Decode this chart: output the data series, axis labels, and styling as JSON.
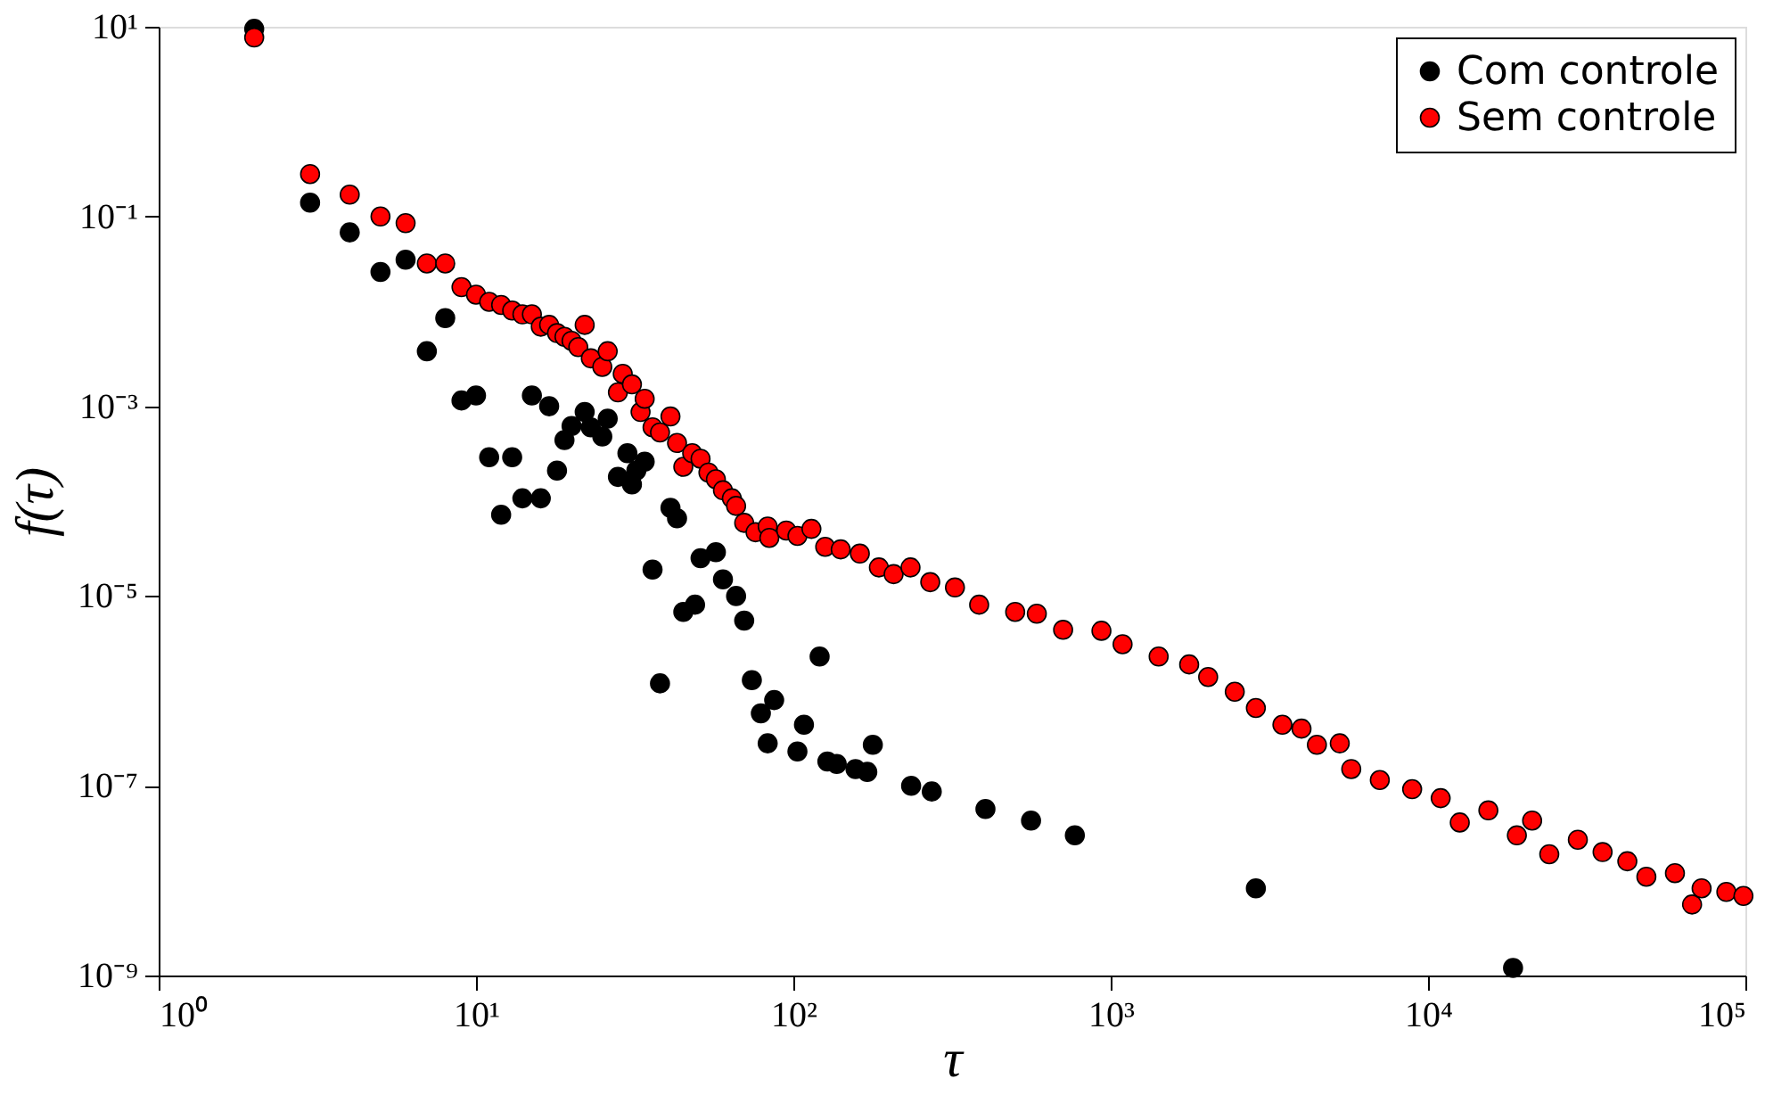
{
  "chart_data": {
    "type": "scatter",
    "xlabel": "τ",
    "ylabel": "f(τ)",
    "log": "xy",
    "grid": false,
    "legend": "top right",
    "marker": "circle",
    "xlim": [
      1,
      100000
    ],
    "ylim": [
      1e-09,
      10
    ],
    "xticks": [
      {
        "value": 1,
        "label": "10⁰"
      },
      {
        "value": 10,
        "label": "10¹"
      },
      {
        "value": 100,
        "label": "10²"
      },
      {
        "value": 1000,
        "label": "10³"
      },
      {
        "value": 10000,
        "label": "10⁴"
      },
      {
        "value": 100000,
        "label": "10⁵"
      }
    ],
    "yticks": [
      {
        "value": 1e-09,
        "label": "10⁻⁹"
      },
      {
        "value": 1e-07,
        "label": "10⁻⁷"
      },
      {
        "value": 1e-05,
        "label": "10⁻⁵"
      },
      {
        "value": 0.001,
        "label": "10⁻³"
      },
      {
        "value": 0.1,
        "label": "10⁻¹"
      },
      {
        "value": 10,
        "label": "10¹"
      }
    ],
    "series": [
      {
        "name": "Com controle",
        "color": "#000000",
        "x": [
          2,
          3,
          4,
          5,
          6,
          7,
          8,
          9,
          10,
          11,
          12,
          13,
          14,
          15,
          16,
          17,
          18,
          19,
          20,
          22,
          23,
          25,
          26,
          28,
          30,
          31,
          32,
          34,
          36,
          38,
          41,
          43,
          45,
          49,
          51,
          57,
          60,
          66,
          70,
          74,
          79,
          83,
          87,
          103,
          108,
          121,
          128,
          137,
          157,
          171,
          178,
          235,
          273,
          403,
          561,
          771,
          2867,
          18530
        ],
        "values": [
          9.5,
          0.14,
          0.068,
          0.026,
          0.035,
          0.0038,
          0.0085,
          0.00115,
          0.0013,
          0.00029,
          7.2e-05,
          0.00029,
          0.000107,
          0.0013,
          0.000107,
          0.001,
          0.00021,
          0.00044,
          0.00062,
          0.00087,
          0.0006,
          0.00048,
          0.00074,
          0.00018,
          0.00032,
          0.00015,
          0.00021,
          0.00026,
          1.9e-05,
          1.2e-06,
          8.5e-05,
          6.6e-05,
          6.8e-06,
          8.1e-06,
          2.5e-05,
          2.9e-05,
          1.5e-05,
          1e-05,
          5.5e-06,
          1.3e-06,
          5.8e-07,
          2.8e-07,
          8e-07,
          2.3e-07,
          4.4e-07,
          2.3e-06,
          1.8e-07,
          1.7e-07,
          1.5e-07,
          1.4e-07,
          2.7e-07,
          1e-07,
          8.7e-08,
          5.7e-08,
          4.3e-08,
          3e-08,
          8.3e-09,
          1.2e-09
        ]
      },
      {
        "name": "Sem controle",
        "color": "#ff0000",
        "x": [
          2,
          3,
          4,
          5,
          6,
          7,
          8,
          9,
          10,
          11,
          12,
          13,
          14,
          15,
          16,
          17,
          18,
          19,
          20,
          21,
          22,
          23,
          25,
          26,
          28,
          29,
          31,
          33,
          34,
          36,
          38,
          41,
          43,
          45,
          48,
          51,
          54,
          57,
          60,
          64,
          66,
          70,
          76,
          83,
          84,
          95,
          103,
          114,
          126,
          141,
          162,
          186,
          207,
          234,
          270,
          323,
          385,
          500,
          585,
          708,
          935,
          1090,
          1416,
          1767,
          2028,
          2460,
          2867,
          3476,
          3993,
          4465,
          5270,
          5728,
          7047,
          8910,
          10960,
          12590,
          15490,
          19050,
          21280,
          24100,
          29650,
          35480,
          42460,
          48750,
          59980,
          67920,
          72780,
          87100,
          98600
        ],
        "values": [
          7.7,
          0.28,
          0.17,
          0.1,
          0.085,
          0.032,
          0.032,
          0.018,
          0.015,
          0.0126,
          0.0117,
          0.0102,
          0.0093,
          0.0093,
          0.0069,
          0.0072,
          0.0059,
          0.0054,
          0.0049,
          0.0042,
          0.0072,
          0.0032,
          0.0026,
          0.0038,
          0.0014,
          0.0022,
          0.0017,
          0.00087,
          0.0012,
          0.0006,
          0.00053,
          0.00078,
          0.00041,
          0.00023,
          0.00032,
          0.00028,
          0.0002,
          0.00017,
          0.00013,
          0.000107,
          8.9e-05,
          5.9e-05,
          4.7e-05,
          5.4e-05,
          4.1e-05,
          4.9e-05,
          4.3e-05,
          5.1e-05,
          3.3e-05,
          3.1e-05,
          2.8e-05,
          2e-05,
          1.7e-05,
          2e-05,
          1.4e-05,
          1.23e-05,
          8.1e-06,
          6.8e-06,
          6.5e-06,
          4.4e-06,
          4.3e-06,
          3.1e-06,
          2.3e-06,
          1.9e-06,
          1.4e-06,
          9.8e-07,
          6.6e-07,
          4.4e-07,
          4e-07,
          2.7e-07,
          2.8e-07,
          1.5e-07,
          1.15e-07,
          9.2e-08,
          7.4e-08,
          4.1e-08,
          5.5e-08,
          3e-08,
          4.3e-08,
          1.9e-08,
          2.7e-08,
          2e-08,
          1.6e-08,
          1.1e-08,
          1.2e-08,
          5.6e-09,
          8.3e-09,
          7.6e-09,
          6.9e-09
        ]
      }
    ]
  }
}
